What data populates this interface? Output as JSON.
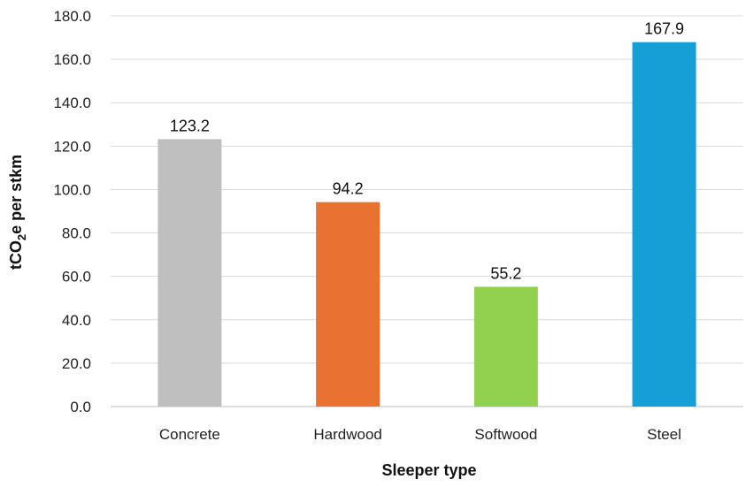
{
  "chart_data": {
    "type": "bar",
    "title": "",
    "xlabel": "Sleeper type",
    "ylabel_parts": [
      "tCO",
      "2",
      "e per stkm"
    ],
    "categories": [
      "Concrete",
      "Hardwood",
      "Softwood",
      "Steel"
    ],
    "values": [
      123.2,
      94.2,
      55.2,
      167.9
    ],
    "value_labels": [
      "123.2",
      "94.2",
      "55.2",
      "167.9"
    ],
    "colors": [
      "#bfbfbf",
      "#e97132",
      "#92d050",
      "#159fd6"
    ],
    "ylim": [
      0,
      180
    ],
    "yticks": [
      "0.0",
      "20.0",
      "40.0",
      "60.0",
      "80.0",
      "100.0",
      "120.0",
      "140.0",
      "160.0",
      "180.0"
    ],
    "grid": true,
    "legend": "none"
  }
}
